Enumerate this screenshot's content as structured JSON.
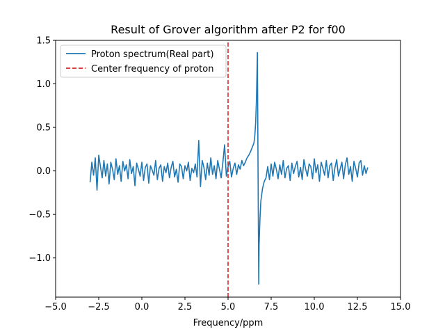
{
  "chart_data": {
    "type": "line",
    "title": "Result of Grover algorithm after P2 for f00",
    "xlabel": "Frequency/ppm",
    "ylabel": "",
    "xlim": [
      -5.0,
      15.0
    ],
    "ylim": [
      -1.45,
      1.5
    ],
    "xticks": [
      -5.0,
      -2.5,
      0.0,
      2.5,
      5.0,
      7.5,
      10.0,
      12.5,
      15.0
    ],
    "xtick_labels": [
      "−5.0",
      "−2.5",
      "0.0",
      "2.5",
      "5.0",
      "7.5",
      "10.0",
      "12.5",
      "15.0"
    ],
    "yticks": [
      -1.0,
      -0.5,
      0.0,
      0.5,
      1.0,
      1.5
    ],
    "ytick_labels": [
      "−1.0",
      "−0.5",
      "0.0",
      "0.5",
      "1.0",
      "1.5"
    ],
    "grid": false,
    "legend_position": "top-left",
    "series": [
      {
        "name": "Proton spectrum(Real part)",
        "color": "#1f77b4",
        "style": "solid",
        "x": [
          -3.0,
          -2.9,
          -2.8,
          -2.7,
          -2.6,
          -2.5,
          -2.4,
          -2.3,
          -2.2,
          -2.1,
          -2.0,
          -1.9,
          -1.8,
          -1.7,
          -1.6,
          -1.5,
          -1.4,
          -1.3,
          -1.2,
          -1.1,
          -1.0,
          -0.9,
          -0.8,
          -0.7,
          -0.6,
          -0.5,
          -0.4,
          -0.3,
          -0.2,
          -0.1,
          0.0,
          0.1,
          0.2,
          0.3,
          0.4,
          0.5,
          0.6,
          0.7,
          0.8,
          0.9,
          1.0,
          1.1,
          1.2,
          1.3,
          1.4,
          1.5,
          1.6,
          1.7,
          1.8,
          1.9,
          2.0,
          2.1,
          2.2,
          2.3,
          2.4,
          2.5,
          2.6,
          2.7,
          2.8,
          2.9,
          3.0,
          3.1,
          3.2,
          3.3,
          3.4,
          3.5,
          3.6,
          3.7,
          3.8,
          3.9,
          4.0,
          4.1,
          4.2,
          4.3,
          4.4,
          4.5,
          4.6,
          4.7,
          4.8,
          4.9,
          5.0,
          5.1,
          5.2,
          5.3,
          5.4,
          5.5,
          5.6,
          5.7,
          5.8,
          5.9,
          6.0,
          6.1,
          6.2,
          6.3,
          6.4,
          6.5,
          6.55,
          6.6,
          6.65,
          6.7,
          6.72,
          6.75,
          6.78,
          6.8,
          6.85,
          6.9,
          7.0,
          7.1,
          7.2,
          7.3,
          7.4,
          7.5,
          7.6,
          7.7,
          7.8,
          7.9,
          8.0,
          8.1,
          8.2,
          8.3,
          8.4,
          8.5,
          8.6,
          8.7,
          8.8,
          8.9,
          9.0,
          9.1,
          9.2,
          9.3,
          9.4,
          9.5,
          9.6,
          9.7,
          9.8,
          9.9,
          10.0,
          10.1,
          10.2,
          10.3,
          10.4,
          10.5,
          10.6,
          10.7,
          10.8,
          10.9,
          11.0,
          11.1,
          11.2,
          11.3,
          11.4,
          11.5,
          11.6,
          11.7,
          11.8,
          11.9,
          12.0,
          12.1,
          12.2,
          12.3,
          12.4,
          12.5,
          12.6,
          12.7,
          12.8,
          12.9,
          13.0,
          13.1
        ],
        "y": [
          -0.13,
          0.1,
          -0.05,
          0.15,
          -0.22,
          0.18,
          0.05,
          -0.08,
          0.12,
          -0.06,
          0.08,
          -0.15,
          0.1,
          0.02,
          -0.1,
          0.14,
          -0.04,
          0.06,
          -0.12,
          0.11,
          0.0,
          0.07,
          -0.09,
          0.13,
          -0.03,
          0.05,
          -0.17,
          0.09,
          0.02,
          -0.06,
          0.1,
          -0.11,
          0.04,
          0.08,
          -0.14,
          0.06,
          0.01,
          -0.05,
          0.12,
          -0.1,
          0.03,
          0.07,
          -0.12,
          0.05,
          -0.02,
          0.09,
          -0.08,
          0.04,
          0.11,
          -0.07,
          0.02,
          -0.13,
          0.08,
          0.05,
          -0.09,
          0.06,
          0.0,
          0.1,
          -0.11,
          0.03,
          -0.02,
          0.08,
          -0.07,
          0.35,
          -0.18,
          0.12,
          0.04,
          -0.1,
          0.09,
          -0.05,
          0.15,
          -0.04,
          0.06,
          -0.09,
          0.12,
          0.02,
          -0.08,
          0.1,
          0.3,
          -0.06,
          0.05,
          0.11,
          -0.07,
          0.03,
          0.09,
          -0.04,
          0.07,
          0.02,
          0.12,
          0.06,
          0.1,
          0.15,
          0.18,
          0.22,
          0.27,
          0.32,
          0.4,
          0.55,
          0.85,
          1.36,
          0.7,
          -0.4,
          -1.3,
          -0.85,
          -0.55,
          -0.35,
          -0.2,
          -0.12,
          -0.08,
          0.05,
          -0.1,
          0.08,
          -0.06,
          0.1,
          0.02,
          -0.09,
          0.07,
          -0.04,
          0.12,
          -0.08,
          0.03,
          0.06,
          -0.11,
          0.09,
          -0.03,
          0.05,
          0.11,
          -0.07,
          0.04,
          -0.1,
          0.13,
          0.02,
          -0.06,
          0.08,
          0.05,
          -0.09,
          0.14,
          -0.02,
          0.07,
          -0.12,
          0.1,
          0.03,
          -0.05,
          0.12,
          -0.08,
          0.06,
          0.09,
          -0.11,
          0.04,
          0.13,
          -0.06,
          0.02,
          0.1,
          -0.09,
          0.07,
          0.15,
          -0.04,
          0.05,
          -0.12,
          0.11,
          0.03,
          -0.07,
          0.09,
          0.12,
          -0.05,
          0.06,
          -0.03,
          0.04
        ]
      },
      {
        "name": "Center frequency of proton",
        "color": "#d62728",
        "style": "dashed",
        "x": [
          5.0,
          5.0
        ],
        "y": [
          -1.45,
          1.5
        ]
      }
    ]
  }
}
